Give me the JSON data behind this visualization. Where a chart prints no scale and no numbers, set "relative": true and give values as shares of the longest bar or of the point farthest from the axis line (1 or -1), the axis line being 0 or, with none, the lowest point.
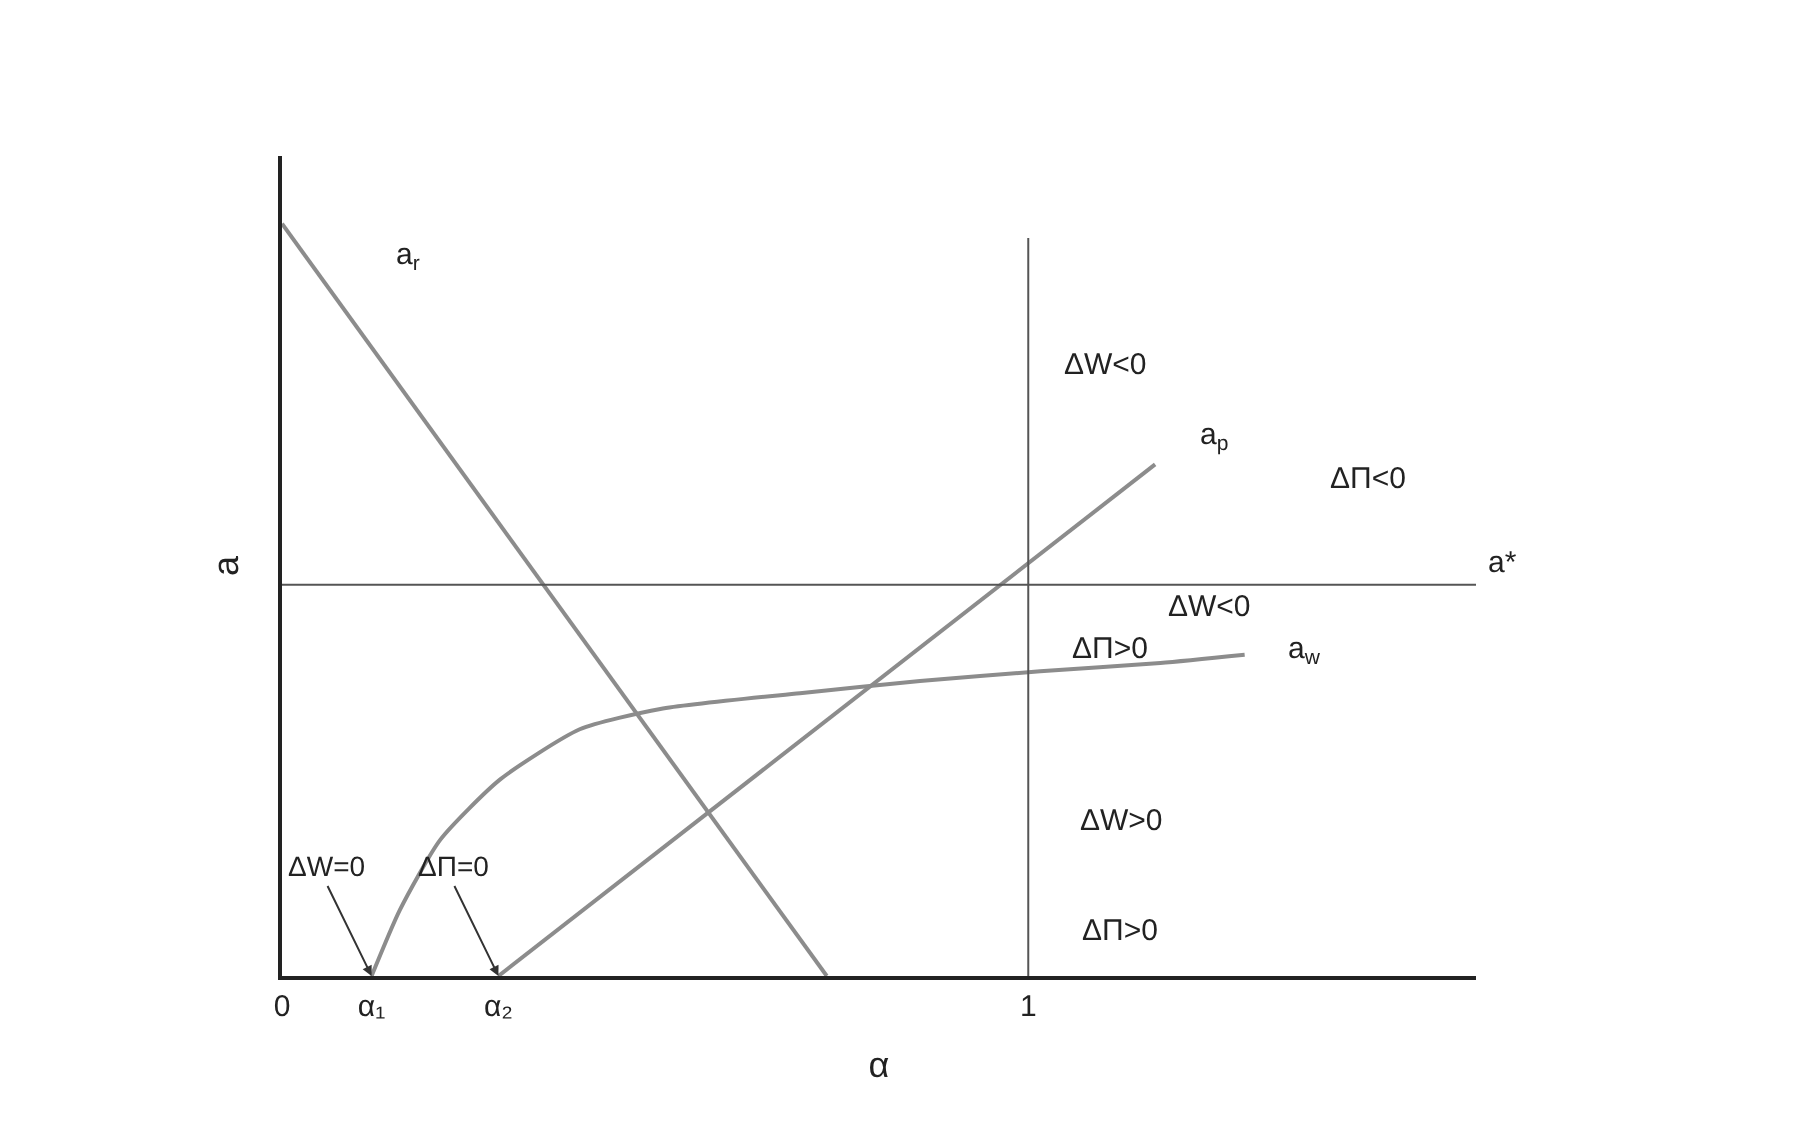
{
  "chart_data": {
    "type": "line",
    "relative": true,
    "xlabel": "α",
    "ylabel": "a",
    "xlim": [
      0,
      1.6
    ],
    "xticks": [
      0,
      {
        "value": 0.12,
        "label": "α₁"
      },
      {
        "value": 0.29,
        "label": "α₂"
      },
      1
    ],
    "legend": false,
    "marker": "none",
    "line_style": "solid",
    "series": [
      {
        "name": "a$_{r}$",
        "color": "#8c8c8c",
        "x": [
          0,
          0.73
        ],
        "values": [
          1,
          0
        ]
      },
      {
        "name": "a$_{p}$",
        "color": "#8c8c8c",
        "x": [
          0.29,
          1.17
        ],
        "values": [
          0,
          0.68
        ]
      },
      {
        "name": "a$_{w}$",
        "color": "#8c8c8c",
        "x": [
          0.12,
          0.158,
          0.212,
          0.292,
          0.399,
          0.507,
          0.694,
          0.855,
          1.016,
          1.177,
          1.29
        ],
        "values": [
          0,
          0.088,
          0.181,
          0.261,
          0.328,
          0.355,
          0.376,
          0.392,
          0.405,
          0.416,
          0.427
        ]
      }
    ],
    "ref_lines": [
      {
        "axis": "x",
        "value": 1,
        "color": "#555555"
      },
      {
        "axis": "y",
        "value": 0.52,
        "label": "a*",
        "color": "#555555"
      }
    ],
    "annotations": [
      "ΔW<0",
      "ΔΠ<0",
      "ΔW<0",
      "ΔΠ>0",
      "ΔW>0",
      "ΔΠ>0",
      {
        "text": "ΔW=0",
        "x": 0.12,
        "y": 0
      },
      {
        "text": "ΔΠ=0",
        "x": 0.29,
        "y": 0
      }
    ]
  }
}
